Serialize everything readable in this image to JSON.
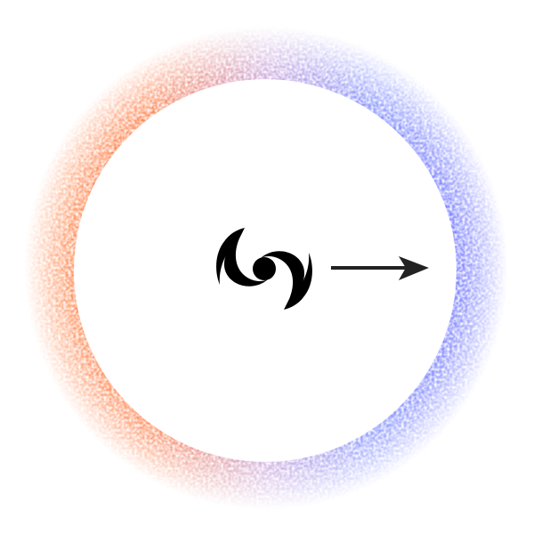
{
  "diagram": {
    "colors": {
      "background": "#ffffff",
      "ring_red": "#ff6a2a",
      "ring_orange": "#ff9a6a",
      "ring_blue": "#5a6cff",
      "ring_violet": "#7a5cff",
      "ring_light_blue": "#8fa6ff",
      "galaxy": "#000000",
      "arrow": "#222222"
    },
    "elements": {
      "galaxy": {
        "icon": "spiral-galaxy-icon"
      },
      "arrow": {
        "icon": "right-arrow-icon",
        "direction": "right"
      },
      "ring": {
        "description": "dipole-noise-ring",
        "left_side": "redshift",
        "right_side": "blueshift"
      }
    }
  }
}
